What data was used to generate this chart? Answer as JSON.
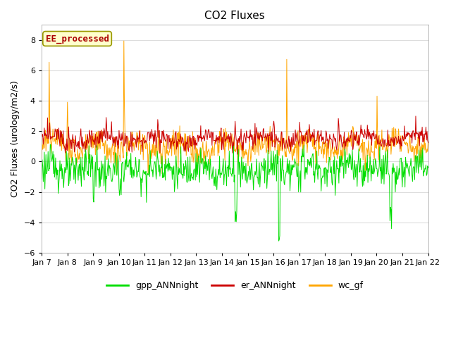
{
  "title": "CO2 Fluxes",
  "ylabel": "CO2 Fluxes (urology/m2/s)",
  "ylim": [
    -6,
    9
  ],
  "yticks": [
    -6,
    -4,
    -2,
    0,
    2,
    4,
    6,
    8
  ],
  "x_tick_labels": [
    "Jan 7",
    "Jan 8",
    "Jan 9",
    "Jan 10",
    "Jan 11",
    "Jan 12",
    "Jan 13",
    "Jan 14",
    "Jan 15",
    "Jan 16",
    "Jan 17",
    "Jan 18",
    "Jan 19",
    "Jan 20",
    "Jan 21",
    "Jan 22"
  ],
  "colors": {
    "gpp": "#00DD00",
    "er": "#CC0000",
    "wc": "#FFA500"
  },
  "legend_labels": [
    "gpp_ANNnight",
    "er_ANNnight",
    "wc_gf"
  ],
  "annotation_text": "EE_processed",
  "annotation_color": "#AA0000",
  "annotation_bg": "#FFFFCC",
  "annotation_edge": "#999900",
  "plot_bg_color": "#FFFFFF",
  "fig_bg_color": "#FFFFFF",
  "grid_color": "#DDDDDD",
  "title_fontsize": 11,
  "label_fontsize": 9,
  "tick_fontsize": 8,
  "legend_fontsize": 9,
  "n_days": 15,
  "n_points": 720,
  "linewidth": 0.7
}
